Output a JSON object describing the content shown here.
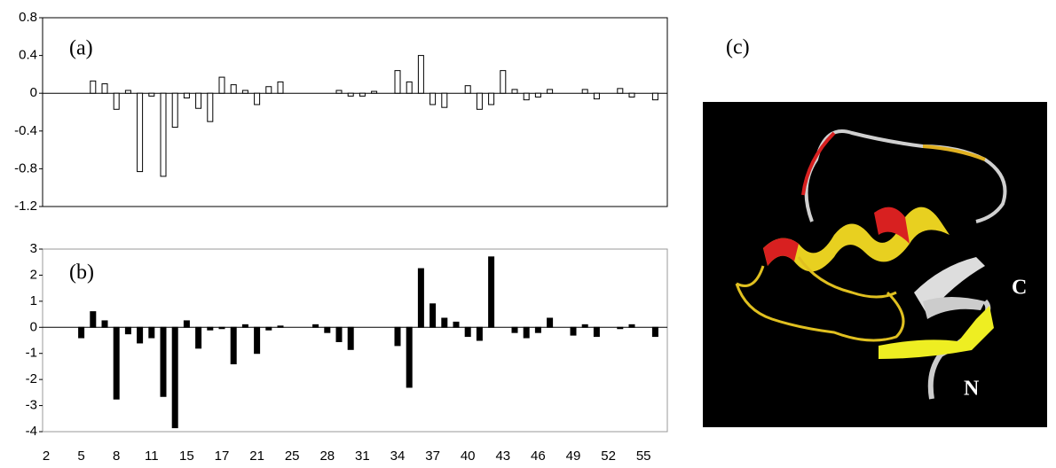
{
  "chart_data": [
    {
      "type": "bar",
      "annotation": "(a)",
      "color": "#ffffff",
      "values": [
        null,
        null,
        null,
        null,
        0.13,
        0.1,
        -0.17,
        0.03,
        -0.83,
        -0.03,
        -0.88,
        -0.36,
        -0.05,
        -0.16,
        -0.3,
        0.17,
        0.09,
        0.03,
        -0.12,
        0.07,
        0.12,
        null,
        null,
        null,
        null,
        0.03,
        -0.03,
        -0.03,
        0.02,
        null,
        0.24,
        0.12,
        0.4,
        -0.12,
        -0.15,
        null,
        0.08,
        -0.17,
        -0.12,
        0.24,
        0.04,
        -0.07,
        -0.04,
        0.04,
        null,
        null,
        0.04,
        -0.06,
        null,
        0.05,
        -0.04,
        null,
        -0.07
      ],
      "ylim": [
        -1.2,
        0.8
      ],
      "yticks": [
        0.8,
        0.4,
        0,
        -0.4,
        -0.8,
        -1.2
      ],
      "grid": false
    },
    {
      "type": "bar",
      "annotation": "(b)",
      "color": "#000000",
      "categories": [
        "2",
        null,
        null,
        "5",
        null,
        null,
        "8",
        null,
        null,
        "11",
        null,
        null,
        "15",
        null,
        null,
        "17",
        null,
        null,
        "21",
        null,
        null,
        "25",
        null,
        null,
        "28",
        null,
        null,
        "31",
        null,
        null,
        "34",
        null,
        null,
        "37",
        null,
        null,
        "40",
        null,
        null,
        "43",
        null,
        null,
        "46",
        null,
        null,
        "49",
        null,
        null,
        "52",
        null,
        null,
        "55",
        null
      ],
      "values": [
        null,
        null,
        null,
        -0.4,
        0.6,
        0.25,
        -2.75,
        -0.25,
        -0.6,
        -0.4,
        -2.65,
        -3.85,
        0.25,
        -0.8,
        -0.1,
        -0.05,
        -1.4,
        0.1,
        -1.0,
        -0.1,
        0.05,
        null,
        null,
        0.1,
        -0.2,
        -0.55,
        -0.85,
        null,
        null,
        null,
        -0.7,
        -2.3,
        2.25,
        0.9,
        0.35,
        0.2,
        -0.35,
        -0.5,
        2.7,
        null,
        -0.2,
        -0.4,
        -0.2,
        0.35,
        null,
        -0.3,
        0.1,
        -0.35,
        null,
        -0.05,
        0.1,
        null,
        -0.35
      ],
      "ylim": [
        -4,
        3
      ],
      "yticks": [
        3,
        2,
        1,
        0,
        -1,
        -2,
        -3,
        -4
      ],
      "grid": false
    }
  ],
  "figure_c": {
    "label": "(c)",
    "annotations": [
      "C",
      "N"
    ]
  }
}
